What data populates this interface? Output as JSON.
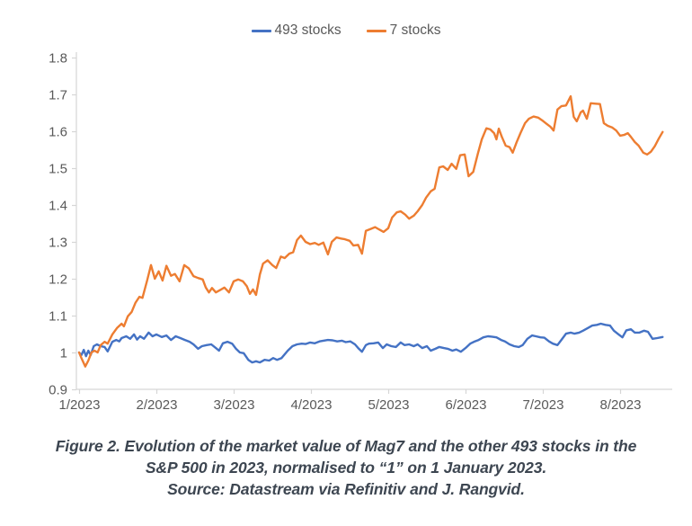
{
  "chart_data": {
    "type": "line",
    "title": "",
    "xlabel": "",
    "ylabel": "",
    "grid": false,
    "legend_position": "top-center",
    "x_axis": {
      "tick_labels": [
        "1/2023",
        "2/2023",
        "3/2023",
        "4/2023",
        "5/2023",
        "6/2023",
        "7/2023",
        "8/2023"
      ],
      "tick_values": [
        1,
        2,
        3,
        4,
        5,
        6,
        7,
        8
      ],
      "range": [
        1,
        8.67
      ]
    },
    "y_axis": {
      "tick_labels": [
        "0.9",
        "1",
        "1.1",
        "1.2",
        "1.3",
        "1.4",
        "1.5",
        "1.6",
        "1.7",
        "1.8"
      ],
      "tick_values": [
        0.9,
        1.0,
        1.1,
        1.2,
        1.3,
        1.4,
        1.5,
        1.6,
        1.7,
        1.8
      ],
      "range": [
        0.9,
        1.8
      ]
    },
    "series": [
      {
        "name": "493 stocks",
        "color": "#4472C4",
        "points": [
          [
            1.0,
            1.0
          ],
          [
            1.03,
            0.993
          ],
          [
            1.06,
            1.007
          ],
          [
            1.09,
            0.99
          ],
          [
            1.12,
            1.005
          ],
          [
            1.15,
            0.993
          ],
          [
            1.19,
            1.017
          ],
          [
            1.23,
            1.022
          ],
          [
            1.28,
            1.017
          ],
          [
            1.33,
            1.015
          ],
          [
            1.37,
            1.003
          ],
          [
            1.43,
            1.029
          ],
          [
            1.48,
            1.034
          ],
          [
            1.52,
            1.03
          ],
          [
            1.55,
            1.039
          ],
          [
            1.61,
            1.044
          ],
          [
            1.66,
            1.037
          ],
          [
            1.71,
            1.049
          ],
          [
            1.75,
            1.035
          ],
          [
            1.79,
            1.044
          ],
          [
            1.84,
            1.037
          ],
          [
            1.9,
            1.054
          ],
          [
            1.95,
            1.044
          ],
          [
            2.0,
            1.049
          ],
          [
            2.07,
            1.042
          ],
          [
            2.13,
            1.046
          ],
          [
            2.19,
            1.034
          ],
          [
            2.25,
            1.044
          ],
          [
            2.31,
            1.039
          ],
          [
            2.37,
            1.034
          ],
          [
            2.43,
            1.029
          ],
          [
            2.48,
            1.022
          ],
          [
            2.54,
            1.01
          ],
          [
            2.59,
            1.017
          ],
          [
            2.65,
            1.02
          ],
          [
            2.71,
            1.022
          ],
          [
            2.77,
            1.012
          ],
          [
            2.81,
            1.005
          ],
          [
            2.86,
            1.025
          ],
          [
            2.92,
            1.029
          ],
          [
            2.98,
            1.024
          ],
          [
            3.03,
            1.01
          ],
          [
            3.08,
            1.0
          ],
          [
            3.13,
            0.998
          ],
          [
            3.19,
            0.98
          ],
          [
            3.24,
            0.973
          ],
          [
            3.29,
            0.976
          ],
          [
            3.34,
            0.973
          ],
          [
            3.4,
            0.98
          ],
          [
            3.46,
            0.978
          ],
          [
            3.51,
            0.985
          ],
          [
            3.56,
            0.98
          ],
          [
            3.62,
            0.985
          ],
          [
            3.7,
            1.005
          ],
          [
            3.76,
            1.017
          ],
          [
            3.82,
            1.022
          ],
          [
            3.88,
            1.024
          ],
          [
            3.93,
            1.023
          ],
          [
            3.99,
            1.027
          ],
          [
            4.05,
            1.025
          ],
          [
            4.11,
            1.03
          ],
          [
            4.16,
            1.032
          ],
          [
            4.22,
            1.034
          ],
          [
            4.28,
            1.033
          ],
          [
            4.34,
            1.03
          ],
          [
            4.4,
            1.032
          ],
          [
            4.45,
            1.028
          ],
          [
            4.51,
            1.03
          ],
          [
            4.57,
            1.022
          ],
          [
            4.62,
            1.01
          ],
          [
            4.66,
            1.002
          ],
          [
            4.71,
            1.02
          ],
          [
            4.75,
            1.024
          ],
          [
            4.81,
            1.025
          ],
          [
            4.87,
            1.027
          ],
          [
            4.93,
            1.012
          ],
          [
            4.98,
            1.022
          ],
          [
            5.04,
            1.017
          ],
          [
            5.1,
            1.015
          ],
          [
            5.16,
            1.027
          ],
          [
            5.21,
            1.02
          ],
          [
            5.27,
            1.022
          ],
          [
            5.33,
            1.017
          ],
          [
            5.38,
            1.022
          ],
          [
            5.44,
            1.012
          ],
          [
            5.5,
            1.017
          ],
          [
            5.55,
            1.005
          ],
          [
            5.61,
            1.01
          ],
          [
            5.66,
            1.015
          ],
          [
            5.72,
            1.012
          ],
          [
            5.77,
            1.01
          ],
          [
            5.83,
            1.005
          ],
          [
            5.88,
            1.008
          ],
          [
            5.94,
            1.002
          ],
          [
            6.0,
            1.012
          ],
          [
            6.06,
            1.024
          ],
          [
            6.12,
            1.03
          ],
          [
            6.17,
            1.034
          ],
          [
            6.23,
            1.041
          ],
          [
            6.29,
            1.044
          ],
          [
            6.34,
            1.043
          ],
          [
            6.4,
            1.041
          ],
          [
            6.46,
            1.034
          ],
          [
            6.51,
            1.03
          ],
          [
            6.57,
            1.022
          ],
          [
            6.63,
            1.017
          ],
          [
            6.69,
            1.015
          ],
          [
            6.74,
            1.02
          ],
          [
            6.8,
            1.037
          ],
          [
            6.86,
            1.046
          ],
          [
            6.91,
            1.044
          ],
          [
            6.97,
            1.041
          ],
          [
            7.02,
            1.04
          ],
          [
            7.08,
            1.03
          ],
          [
            7.13,
            1.024
          ],
          [
            7.19,
            1.02
          ],
          [
            7.24,
            1.034
          ],
          [
            7.3,
            1.051
          ],
          [
            7.36,
            1.054
          ],
          [
            7.41,
            1.051
          ],
          [
            7.47,
            1.054
          ],
          [
            7.52,
            1.059
          ],
          [
            7.58,
            1.066
          ],
          [
            7.64,
            1.073
          ],
          [
            7.7,
            1.075
          ],
          [
            7.75,
            1.078
          ],
          [
            7.81,
            1.075
          ],
          [
            7.87,
            1.073
          ],
          [
            7.92,
            1.059
          ],
          [
            7.98,
            1.049
          ],
          [
            8.03,
            1.041
          ],
          [
            8.08,
            1.06
          ],
          [
            8.14,
            1.063
          ],
          [
            8.19,
            1.054
          ],
          [
            8.25,
            1.054
          ],
          [
            8.31,
            1.059
          ],
          [
            8.36,
            1.056
          ],
          [
            8.42,
            1.037
          ],
          [
            8.48,
            1.039
          ],
          [
            8.55,
            1.042
          ]
        ]
      },
      {
        "name": "7 stocks",
        "color": "#ED7D31",
        "points": [
          [
            1.0,
            1.0
          ],
          [
            1.03,
            0.985
          ],
          [
            1.08,
            0.962
          ],
          [
            1.12,
            0.978
          ],
          [
            1.16,
            1.0
          ],
          [
            1.2,
            1.005
          ],
          [
            1.24,
            1.0
          ],
          [
            1.28,
            1.02
          ],
          [
            1.33,
            1.029
          ],
          [
            1.37,
            1.024
          ],
          [
            1.43,
            1.049
          ],
          [
            1.49,
            1.066
          ],
          [
            1.55,
            1.078
          ],
          [
            1.58,
            1.071
          ],
          [
            1.63,
            1.098
          ],
          [
            1.68,
            1.11
          ],
          [
            1.73,
            1.135
          ],
          [
            1.78,
            1.151
          ],
          [
            1.82,
            1.148
          ],
          [
            1.88,
            1.195
          ],
          [
            1.93,
            1.237
          ],
          [
            1.98,
            1.2
          ],
          [
            2.03,
            1.22
          ],
          [
            2.08,
            1.195
          ],
          [
            2.13,
            1.235
          ],
          [
            2.19,
            1.208
          ],
          [
            2.24,
            1.213
          ],
          [
            2.3,
            1.193
          ],
          [
            2.36,
            1.237
          ],
          [
            2.42,
            1.228
          ],
          [
            2.48,
            1.207
          ],
          [
            2.54,
            1.202
          ],
          [
            2.6,
            1.198
          ],
          [
            2.64,
            1.176
          ],
          [
            2.68,
            1.163
          ],
          [
            2.72,
            1.175
          ],
          [
            2.77,
            1.163
          ],
          [
            2.83,
            1.17
          ],
          [
            2.88,
            1.176
          ],
          [
            2.94,
            1.163
          ],
          [
            3.0,
            1.193
          ],
          [
            3.06,
            1.198
          ],
          [
            3.12,
            1.193
          ],
          [
            3.17,
            1.18
          ],
          [
            3.21,
            1.159
          ],
          [
            3.25,
            1.171
          ],
          [
            3.29,
            1.156
          ],
          [
            3.34,
            1.212
          ],
          [
            3.38,
            1.241
          ],
          [
            3.44,
            1.25
          ],
          [
            3.5,
            1.237
          ],
          [
            3.55,
            1.229
          ],
          [
            3.61,
            1.26
          ],
          [
            3.66,
            1.256
          ],
          [
            3.72,
            1.268
          ],
          [
            3.77,
            1.272
          ],
          [
            3.82,
            1.305
          ],
          [
            3.87,
            1.317
          ],
          [
            3.93,
            1.3
          ],
          [
            3.99,
            1.294
          ],
          [
            4.05,
            1.297
          ],
          [
            4.1,
            1.292
          ],
          [
            4.16,
            1.298
          ],
          [
            4.22,
            1.266
          ],
          [
            4.27,
            1.3
          ],
          [
            4.33,
            1.312
          ],
          [
            4.39,
            1.309
          ],
          [
            4.44,
            1.307
          ],
          [
            4.5,
            1.303
          ],
          [
            4.55,
            1.29
          ],
          [
            4.61,
            1.292
          ],
          [
            4.66,
            1.268
          ],
          [
            4.71,
            1.33
          ],
          [
            4.77,
            1.335
          ],
          [
            4.83,
            1.34
          ],
          [
            4.88,
            1.334
          ],
          [
            4.94,
            1.327
          ],
          [
            5.0,
            1.337
          ],
          [
            5.05,
            1.366
          ],
          [
            5.11,
            1.38
          ],
          [
            5.16,
            1.383
          ],
          [
            5.22,
            1.374
          ],
          [
            5.27,
            1.363
          ],
          [
            5.33,
            1.371
          ],
          [
            5.38,
            1.383
          ],
          [
            5.44,
            1.4
          ],
          [
            5.49,
            1.42
          ],
          [
            5.55,
            1.437
          ],
          [
            5.6,
            1.444
          ],
          [
            5.66,
            1.502
          ],
          [
            5.71,
            1.505
          ],
          [
            5.77,
            1.495
          ],
          [
            5.82,
            1.512
          ],
          [
            5.88,
            1.498
          ],
          [
            5.93,
            1.535
          ],
          [
            5.99,
            1.537
          ],
          [
            6.04,
            1.478
          ],
          [
            6.1,
            1.49
          ],
          [
            6.16,
            1.54
          ],
          [
            6.21,
            1.578
          ],
          [
            6.27,
            1.608
          ],
          [
            6.32,
            1.605
          ],
          [
            6.37,
            1.595
          ],
          [
            6.4,
            1.578
          ],
          [
            6.43,
            1.607
          ],
          [
            6.47,
            1.585
          ],
          [
            6.52,
            1.561
          ],
          [
            6.57,
            1.557
          ],
          [
            6.61,
            1.542
          ],
          [
            6.66,
            1.57
          ],
          [
            6.71,
            1.595
          ],
          [
            6.77,
            1.622
          ],
          [
            6.82,
            1.634
          ],
          [
            6.88,
            1.64
          ],
          [
            6.94,
            1.637
          ],
          [
            6.99,
            1.63
          ],
          [
            7.05,
            1.62
          ],
          [
            7.1,
            1.612
          ],
          [
            7.14,
            1.602
          ],
          [
            7.19,
            1.659
          ],
          [
            7.24,
            1.668
          ],
          [
            7.3,
            1.67
          ],
          [
            7.36,
            1.695
          ],
          [
            7.4,
            1.639
          ],
          [
            7.44,
            1.627
          ],
          [
            7.49,
            1.651
          ],
          [
            7.52,
            1.656
          ],
          [
            7.57,
            1.634
          ],
          [
            7.62,
            1.676
          ],
          [
            7.68,
            1.675
          ],
          [
            7.74,
            1.674
          ],
          [
            7.79,
            1.622
          ],
          [
            7.84,
            1.615
          ],
          [
            7.9,
            1.61
          ],
          [
            7.95,
            1.602
          ],
          [
            8.0,
            1.588
          ],
          [
            8.05,
            1.59
          ],
          [
            8.1,
            1.595
          ],
          [
            8.14,
            1.585
          ],
          [
            8.19,
            1.571
          ],
          [
            8.24,
            1.561
          ],
          [
            8.3,
            1.542
          ],
          [
            8.35,
            1.537
          ],
          [
            8.4,
            1.545
          ],
          [
            8.45,
            1.56
          ],
          [
            8.5,
            1.58
          ],
          [
            8.55,
            1.598
          ]
        ]
      }
    ]
  },
  "caption": {
    "line1": "Figure 2. Evolution of the market value of Mag7 and the other 493 stocks in the",
    "line2": "S&P 500 in 2023, normalised to “1” on 1 January 2023.",
    "line3": "Source: Datastream via Refinitiv and J. Rangvid."
  },
  "colors": {
    "axis_line": "#d6d6d6",
    "tick_text": "#595959",
    "legend_text": "#595959",
    "caption_text": "#3d4651",
    "series_blue": "#4472C4",
    "series_orange": "#ED7D31"
  }
}
